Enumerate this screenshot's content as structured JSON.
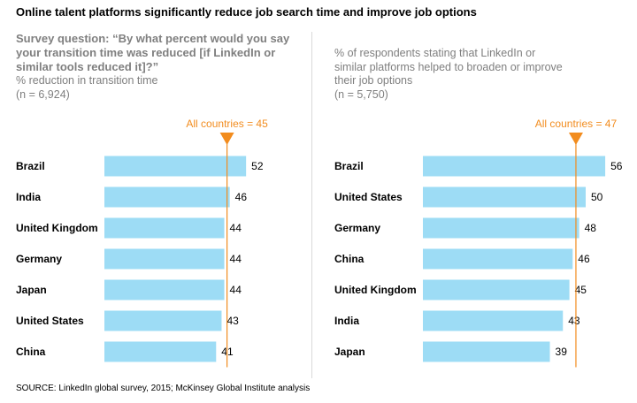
{
  "title": "Online talent platforms significantly reduce job search time and improve job options",
  "left_panel": {
    "question": "Survey question: “By what percent would you say your transition time was reduced [if LinkedIn or similar tools reduced it]?”",
    "question_lines": [
      "Survey question: “By what percent would you say",
      "your transition time was reduced [if LinkedIn or",
      "similar tools reduced it]?”"
    ],
    "measure": "% reduction in transition time",
    "n": "(n = 6,924)"
  },
  "right_panel": {
    "measure_lines": [
      "% of respondents stating that LinkedIn or",
      "similar platforms helped to broaden or improve",
      "their job options"
    ],
    "n": "(n = 5,750)"
  },
  "source": "SOURCE: LinkedIn global survey, 2015; McKinsey Global Institute analysis",
  "colors": {
    "bar": "#9ddcf5",
    "reference": "#f28c1e",
    "divider": "#d9d9d9"
  },
  "chart_data": [
    {
      "type": "bar",
      "orientation": "horizontal",
      "categories": [
        "Brazil",
        "India",
        "United Kingdom",
        "Germany",
        "Japan",
        "United States",
        "China"
      ],
      "values": [
        52,
        46,
        44,
        44,
        44,
        43,
        41
      ],
      "reference_line": {
        "label": "All countries = 45",
        "value": 45
      }
    },
    {
      "type": "bar",
      "orientation": "horizontal",
      "categories": [
        "Brazil",
        "United States",
        "Germany",
        "China",
        "United Kingdom",
        "India",
        "Japan"
      ],
      "values": [
        56,
        50,
        48,
        46,
        45,
        43,
        39
      ],
      "reference_line": {
        "label": "All countries = 47",
        "value": 47
      }
    }
  ]
}
